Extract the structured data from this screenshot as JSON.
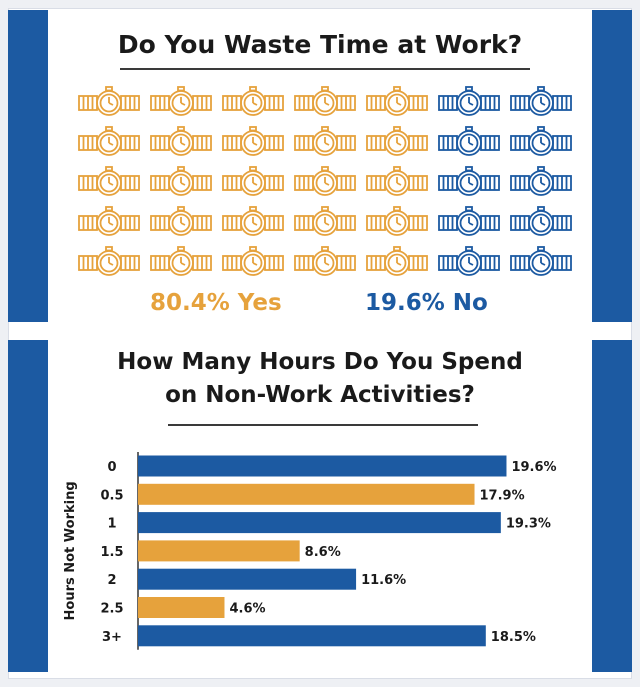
{
  "top_panel": {
    "title": "Do You Waste Time at Work?",
    "yes_label": "80.4% Yes",
    "no_label": "19.6% No",
    "icon_counts": {
      "yes": 25,
      "no": 10
    }
  },
  "bottom_panel": {
    "title_line1": "How Many Hours Do You Spend",
    "title_line2": "on Non-Work Activities?"
  },
  "colors": {
    "blue": "#1c5aa2",
    "orange": "#e6a23c",
    "text": "#1a1a1a"
  },
  "chart_data": [
    {
      "type": "pictograph",
      "title": "Do You Waste Time at Work?",
      "categories": [
        "Yes",
        "No"
      ],
      "values": [
        80.4,
        19.6
      ],
      "unit": "%"
    },
    {
      "type": "bar",
      "orientation": "horizontal",
      "title": "How Many Hours Do You Spend on Non-Work Activities?",
      "ylabel": "Hours Not Working",
      "categories": [
        "0",
        "0.5",
        "1",
        "1.5",
        "2",
        "2.5",
        "3+"
      ],
      "values": [
        19.6,
        17.9,
        19.3,
        8.6,
        11.6,
        4.6,
        18.5
      ],
      "value_labels": [
        "19.6%",
        "17.9%",
        "19.3%",
        "8.6%",
        "11.6%",
        "4.6%",
        "18.5%"
      ],
      "bar_colors": [
        "blue",
        "orange",
        "blue",
        "orange",
        "blue",
        "orange",
        "blue"
      ],
      "xlim": [
        0,
        20
      ],
      "grid": false,
      "legend": "none"
    }
  ]
}
